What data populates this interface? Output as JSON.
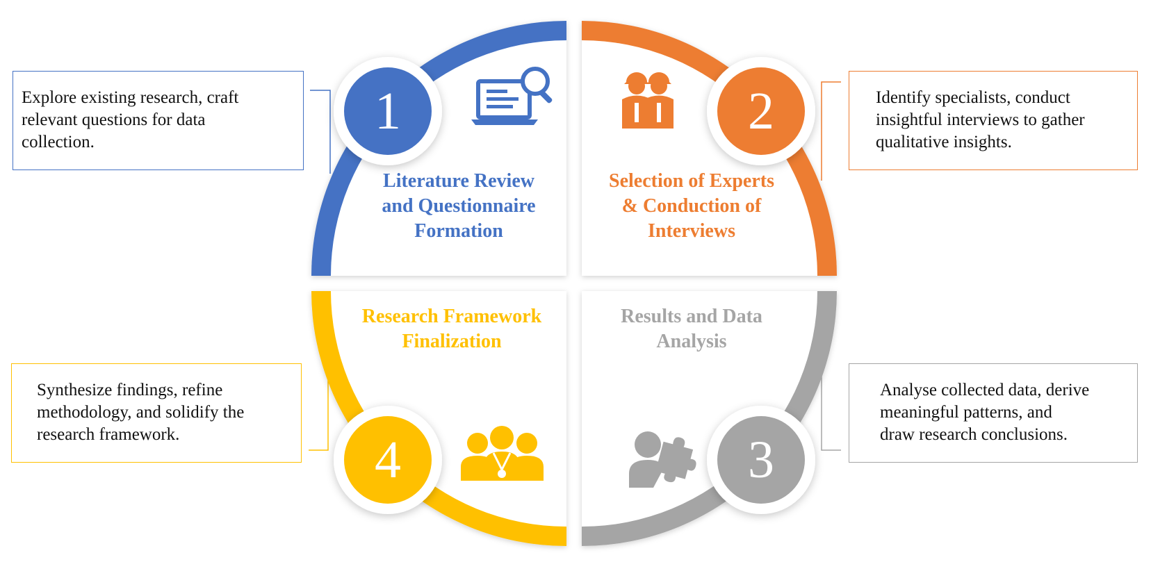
{
  "colors": {
    "stage1": "#4472C4",
    "stage2": "#ED7D31",
    "stage3": "#A5A5A5",
    "stage4": "#FFC000"
  },
  "stages": [
    {
      "number": "1",
      "title_lines": [
        "Literature Review",
        "and Questionnaire",
        "Formation"
      ],
      "description_lines": [
        "Explore existing research, craft",
        "relevant questions for data",
        "collection."
      ],
      "icon": "laptop-search-icon"
    },
    {
      "number": "2",
      "title_lines": [
        "Selection of Experts",
        "& Conduction of",
        "Interviews"
      ],
      "description_lines": [
        "Identify specialists, conduct",
        "insightful interviews to gather",
        "qualitative insights."
      ],
      "icon": "experts-icon"
    },
    {
      "number": "3",
      "title_lines": [
        "Results and Data",
        "Analysis"
      ],
      "description_lines": [
        "Analyse collected data, derive",
        "meaningful patterns, and",
        "draw research conclusions."
      ],
      "icon": "person-puzzle-icon"
    },
    {
      "number": "4",
      "title_lines": [
        "Research Framework",
        "Finalization"
      ],
      "description_lines": [
        "Synthesize findings, refine",
        "methodology, and solidify the",
        "research framework."
      ],
      "icon": "team-icon"
    }
  ]
}
